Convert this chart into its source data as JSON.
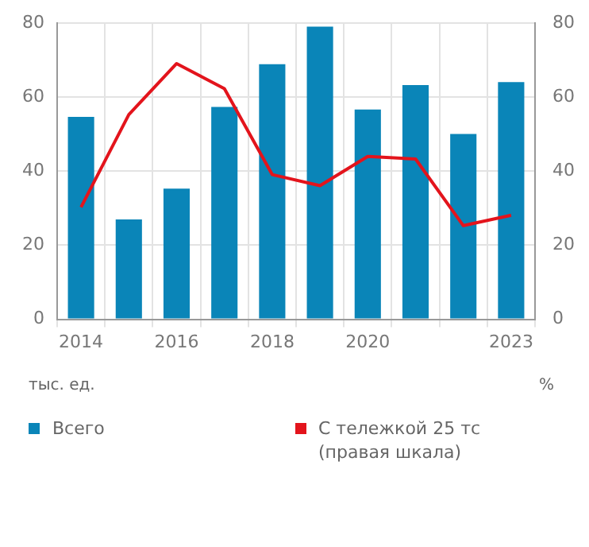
{
  "chart_data": {
    "type": "bar",
    "categories": [
      "2014",
      null,
      "2016",
      null,
      "2018",
      null,
      "2020",
      null,
      null,
      "2023"
    ],
    "series": [
      {
        "name": "Всего",
        "color": "#0a85b8",
        "values": [
          54.7,
          27,
          35.3,
          57.4,
          68.9,
          79.1,
          56.7,
          63.3,
          50.1,
          64.1
        ]
      },
      {
        "name": "С тележкой 25 тс (правая шкала)",
        "type": "line",
        "axis": "y2",
        "color": "#e3141c",
        "values": [
          30.3,
          55.3,
          69.1,
          62.3,
          39.1,
          36.1,
          44,
          43.3,
          25.3,
          28.1
        ]
      }
    ],
    "ylim": [
      0,
      80
    ],
    "yticks": [
      0,
      20,
      40,
      60,
      80
    ],
    "y2lim": [
      0,
      80
    ],
    "y2ticks": [
      0,
      20,
      40,
      60,
      80
    ],
    "ylabel": "тыс. ед.",
    "y2label": "%",
    "grid": true,
    "legend": "bottom",
    "marker": "none",
    "line_style": "solid"
  }
}
